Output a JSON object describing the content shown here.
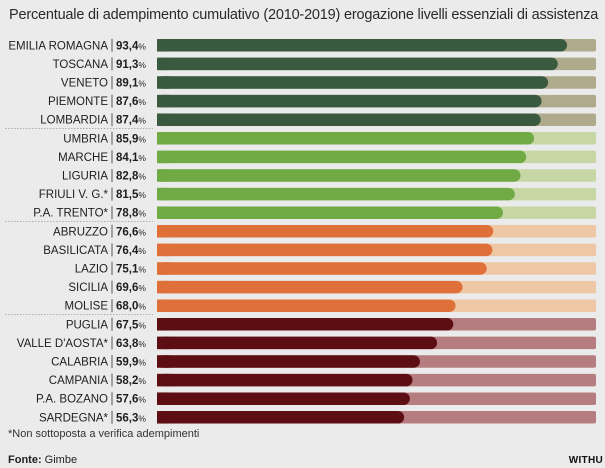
{
  "chart_data": {
    "type": "bar",
    "title": "Percentuale di adempimento cumulativo (2010-2019) erogazione livelli essenziali di assistenza",
    "xlabel": "",
    "ylabel": "",
    "xlim": [
      0,
      100
    ],
    "unit": "%",
    "categories": [
      "EMILIA ROMAGNA",
      "TOSCANA",
      "VENETO",
      "PIEMONTE",
      "LOMBARDIA",
      "UMBRIA",
      "MARCHE",
      "LIGURIA",
      "FRIULI V. G.*",
      "P.A. TRENTO*",
      "ABRUZZO",
      "BASILICATA",
      "LAZIO",
      "SICILIA",
      "MOLISE",
      "PUGLIA",
      "VALLE D'AOSTA*",
      "CALABRIA",
      "CAMPANIA",
      "P.A. BOZANO",
      "SARDEGNA*"
    ],
    "values": [
      93.4,
      91.3,
      89.1,
      87.6,
      87.4,
      85.9,
      84.1,
      82.8,
      81.5,
      78.8,
      76.6,
      76.4,
      75.1,
      69.6,
      68.0,
      67.5,
      63.8,
      59.9,
      58.2,
      57.6,
      56.3
    ],
    "value_labels": [
      "93,4",
      "91,3",
      "89,1",
      "87,6",
      "87,4",
      "85,9",
      "84,1",
      "82,8",
      "81,5",
      "78,8",
      "76,6",
      "76,4",
      "75,1",
      "69,6",
      "68,0",
      "67,5",
      "63,8",
      "59,9",
      "58,2",
      "57,6",
      "56,3"
    ],
    "groups": [
      {
        "start": 0,
        "end": 4,
        "bar_color": "#3a5a40",
        "track_color": "#b0aa8c"
      },
      {
        "start": 5,
        "end": 9,
        "bar_color": "#6faa45",
        "track_color": "#c6d6a4"
      },
      {
        "start": 10,
        "end": 14,
        "bar_color": "#e0703a",
        "track_color": "#eec7a4"
      },
      {
        "start": 15,
        "end": 20,
        "bar_color": "#5c0e13",
        "track_color": "#b57d80"
      }
    ],
    "grid": false,
    "legend": "none"
  },
  "footnote": "*Non sottoposta a verifica adempimenti",
  "source_label": "Fonte:",
  "source_value": "Gimbe",
  "brand": "WITHU"
}
